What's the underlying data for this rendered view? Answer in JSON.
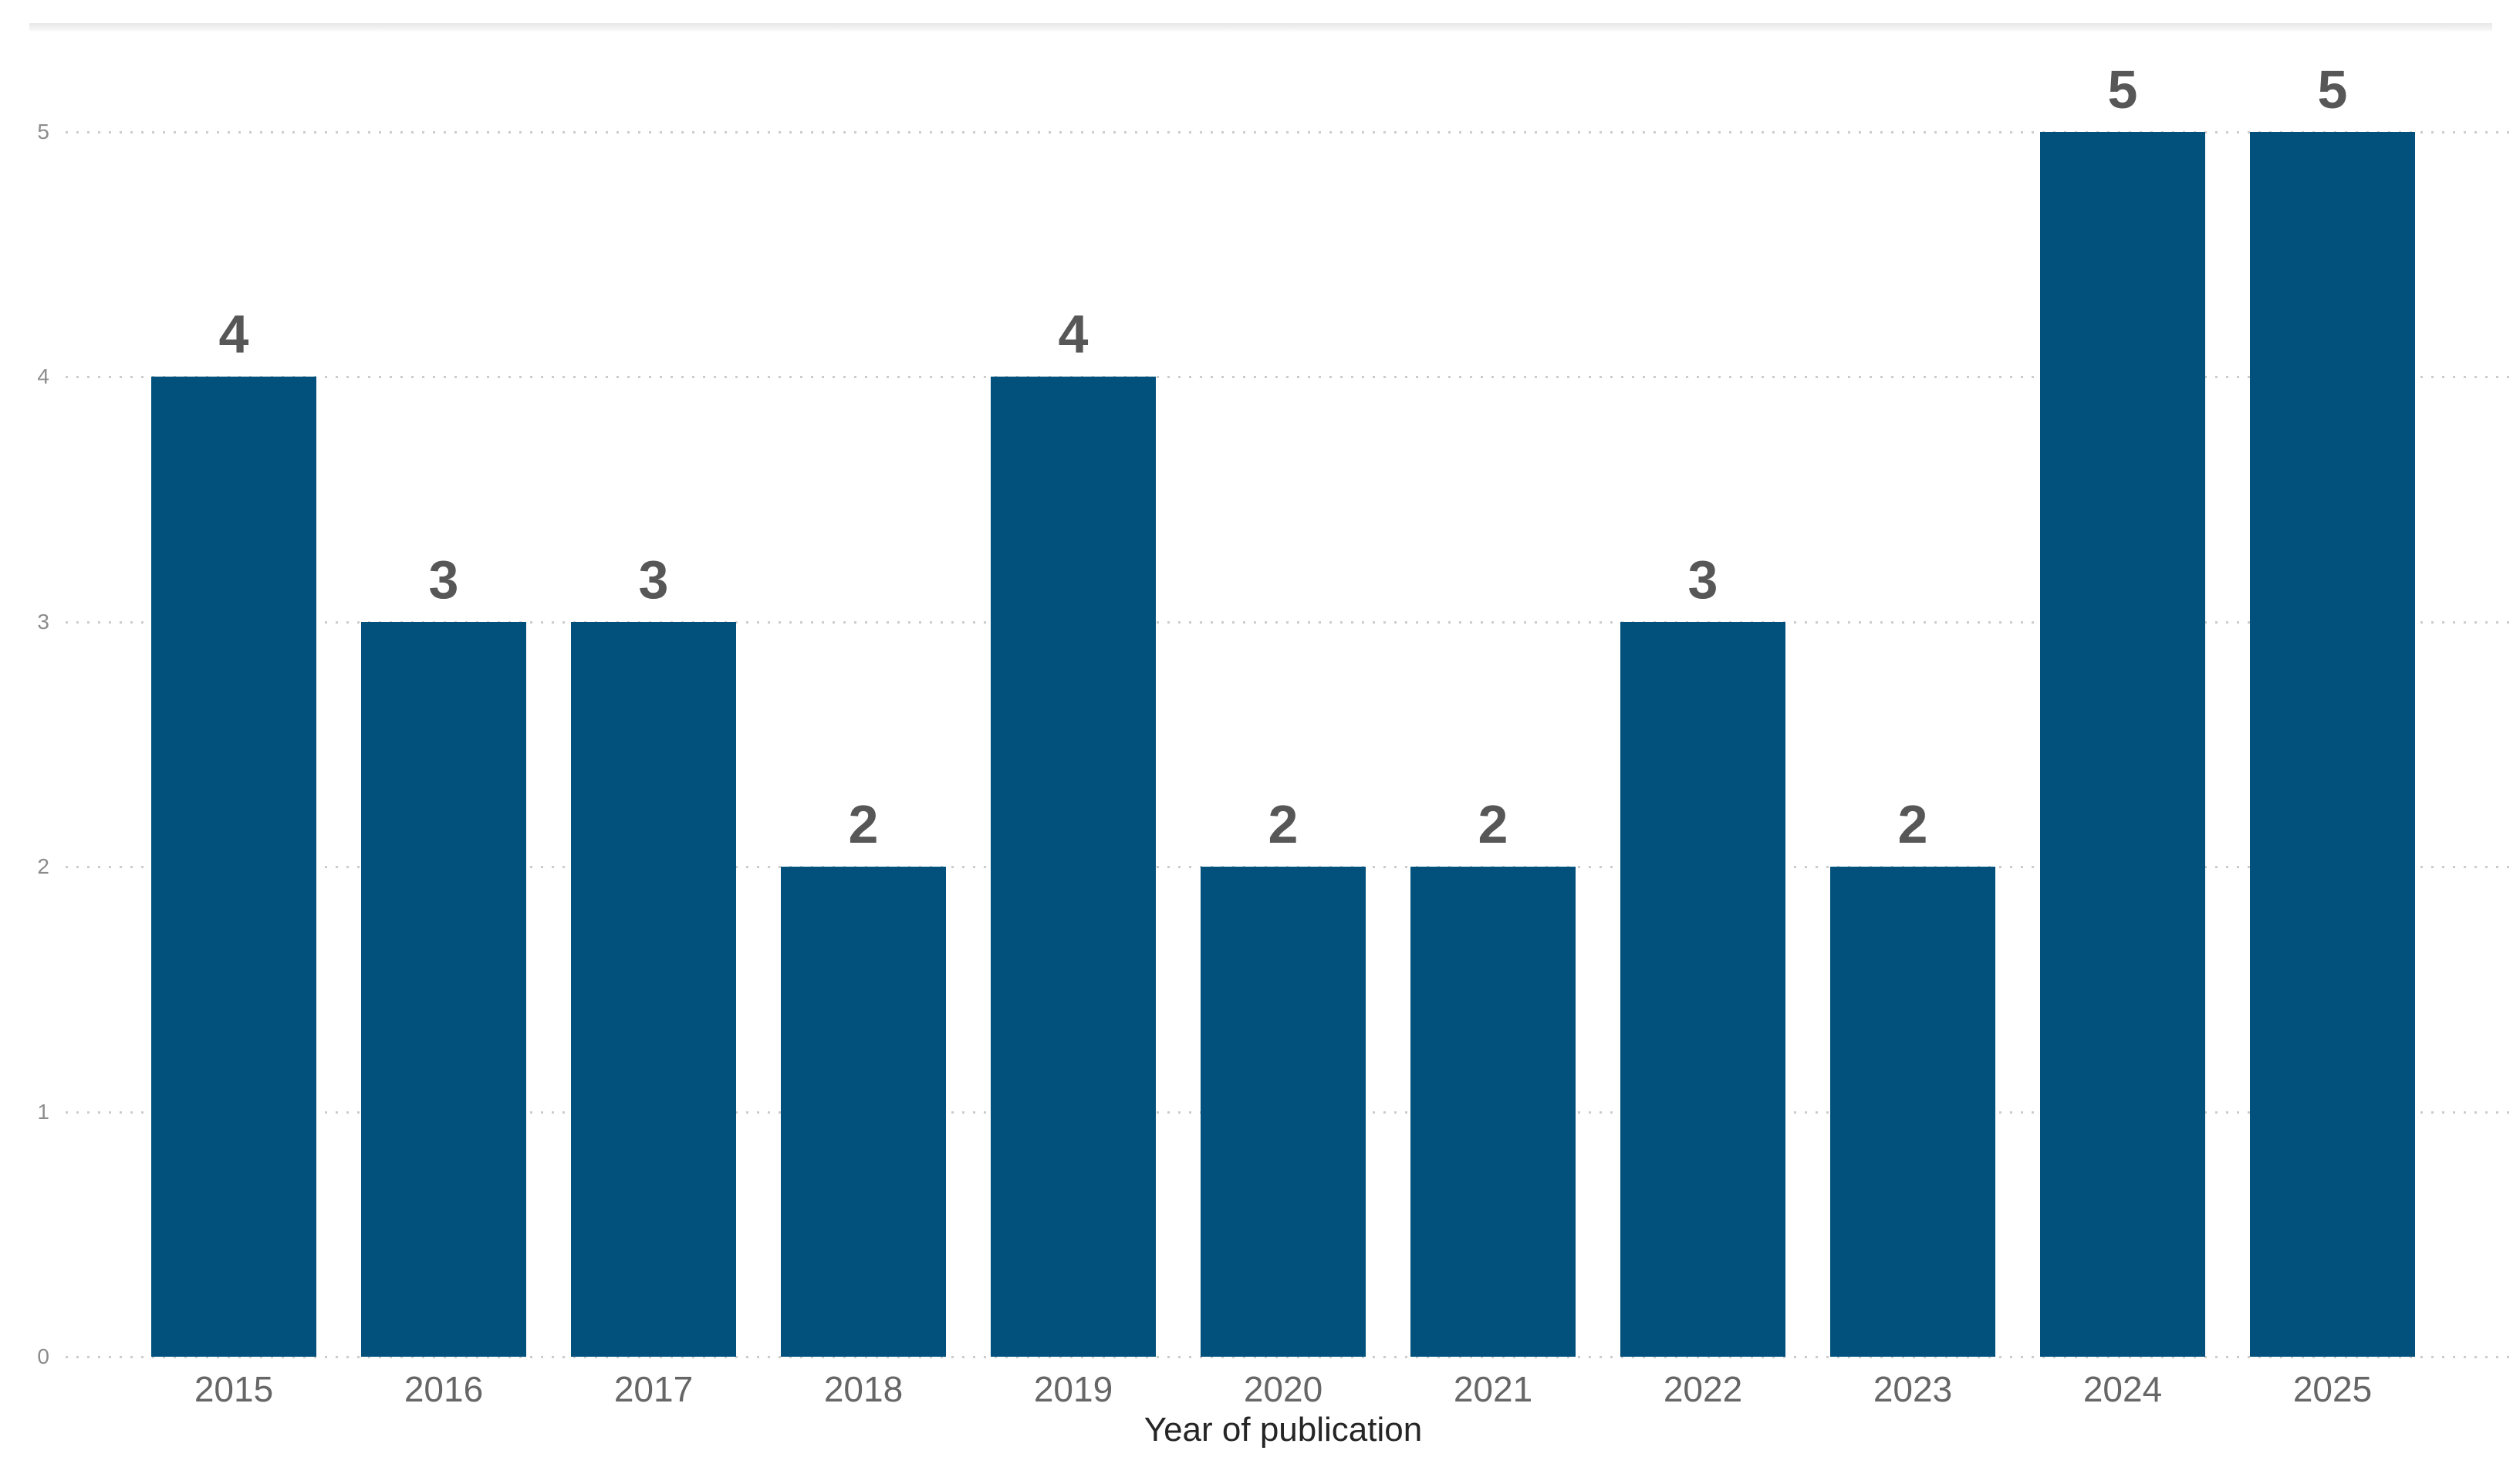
{
  "page": {
    "background": "#ffffff"
  },
  "chart_data": {
    "type": "bar",
    "title": "",
    "categories": [
      "2015",
      "2016",
      "2017",
      "2018",
      "2019",
      "2020",
      "2021",
      "2022",
      "2023",
      "2024",
      "2025"
    ],
    "values": [
      4,
      3,
      3,
      2,
      4,
      2,
      2,
      3,
      2,
      5,
      5
    ],
    "xlabel": "Year of publication",
    "ylabel": "",
    "ylim": [
      0,
      5
    ],
    "yticks": [
      0,
      1,
      2,
      3,
      4,
      5
    ],
    "grid": "horizontal-dotted",
    "legend": "none",
    "data_labels_shown": true,
    "colors": {
      "bar": "#02517C",
      "data_label": "#575757",
      "x_tick_label": "#666666",
      "y_tick_label": "#8c8c8c",
      "axis_title": "#252525",
      "gridline": "#cccccc"
    }
  }
}
